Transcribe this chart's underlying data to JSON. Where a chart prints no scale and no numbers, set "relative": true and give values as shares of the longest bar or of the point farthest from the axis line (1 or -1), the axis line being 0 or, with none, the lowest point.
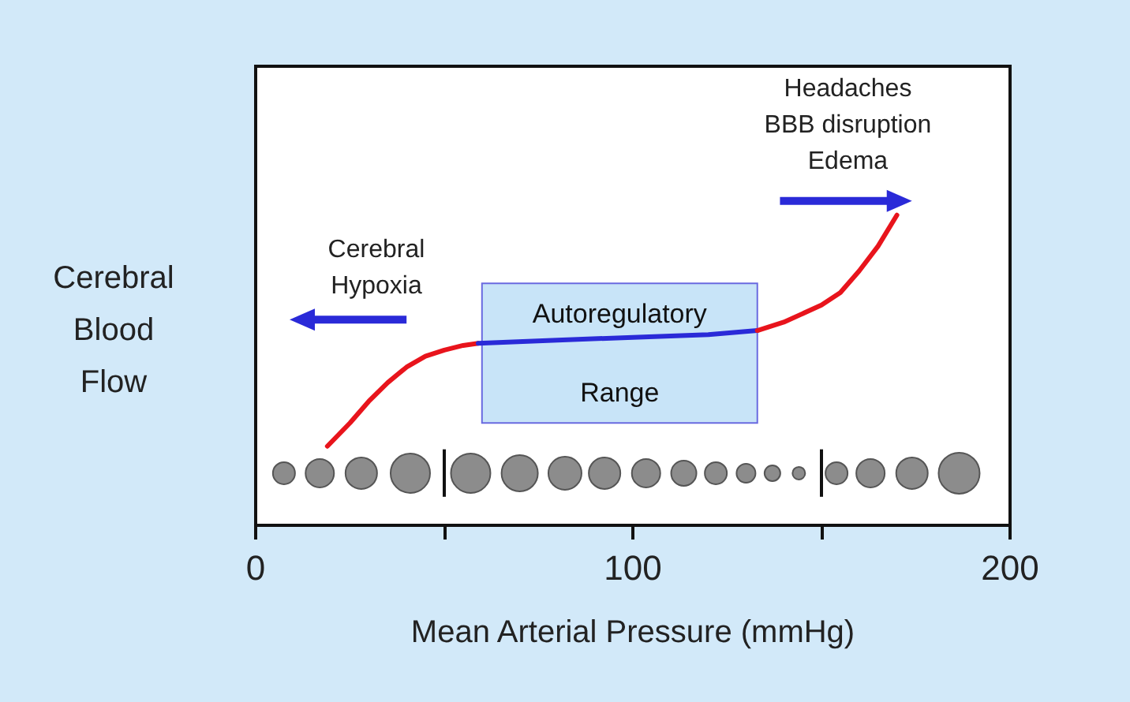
{
  "chart_data": {
    "type": "line",
    "relative": true,
    "xlabel": "Mean Arterial Pressure (mmHg)",
    "ylabel": "Cerebral\nBlood\nFlow",
    "xlim": [
      0,
      200
    ],
    "xticks": [
      0,
      {
        "value": 50,
        "label": null
      },
      100,
      {
        "value": 150,
        "label": null
      },
      200
    ],
    "series": [
      {
        "color": "#e8141c",
        "x": [
          19,
          25,
          30,
          35,
          40,
          45,
          50,
          55,
          59
        ],
        "values": [
          0.255,
          0.33,
          0.4,
          0.46,
          0.51,
          0.545,
          0.565,
          0.58,
          0.587
        ]
      },
      {
        "color": "#2a2ad8",
        "x": [
          59,
          80,
          100,
          120,
          133
        ],
        "values": [
          0.587,
          0.597,
          0.606,
          0.615,
          0.628
        ]
      },
      {
        "color": "#e8141c",
        "x": [
          133,
          140,
          150,
          155,
          160,
          165,
          170
        ],
        "values": [
          0.628,
          0.655,
          0.71,
          0.75,
          0.82,
          0.9,
          1.0
        ]
      }
    ],
    "bands": [
      {
        "axis": "x",
        "from": 60,
        "to": 133,
        "label": "Autoregulatory\nRange",
        "color": "#c8e4f8"
      }
    ],
    "annotations": [
      "Cerebral\nHypoxia",
      "Headaches\nBBB disruption\nEdema"
    ],
    "grid": false,
    "marker": "none",
    "line_style": "solid"
  }
}
